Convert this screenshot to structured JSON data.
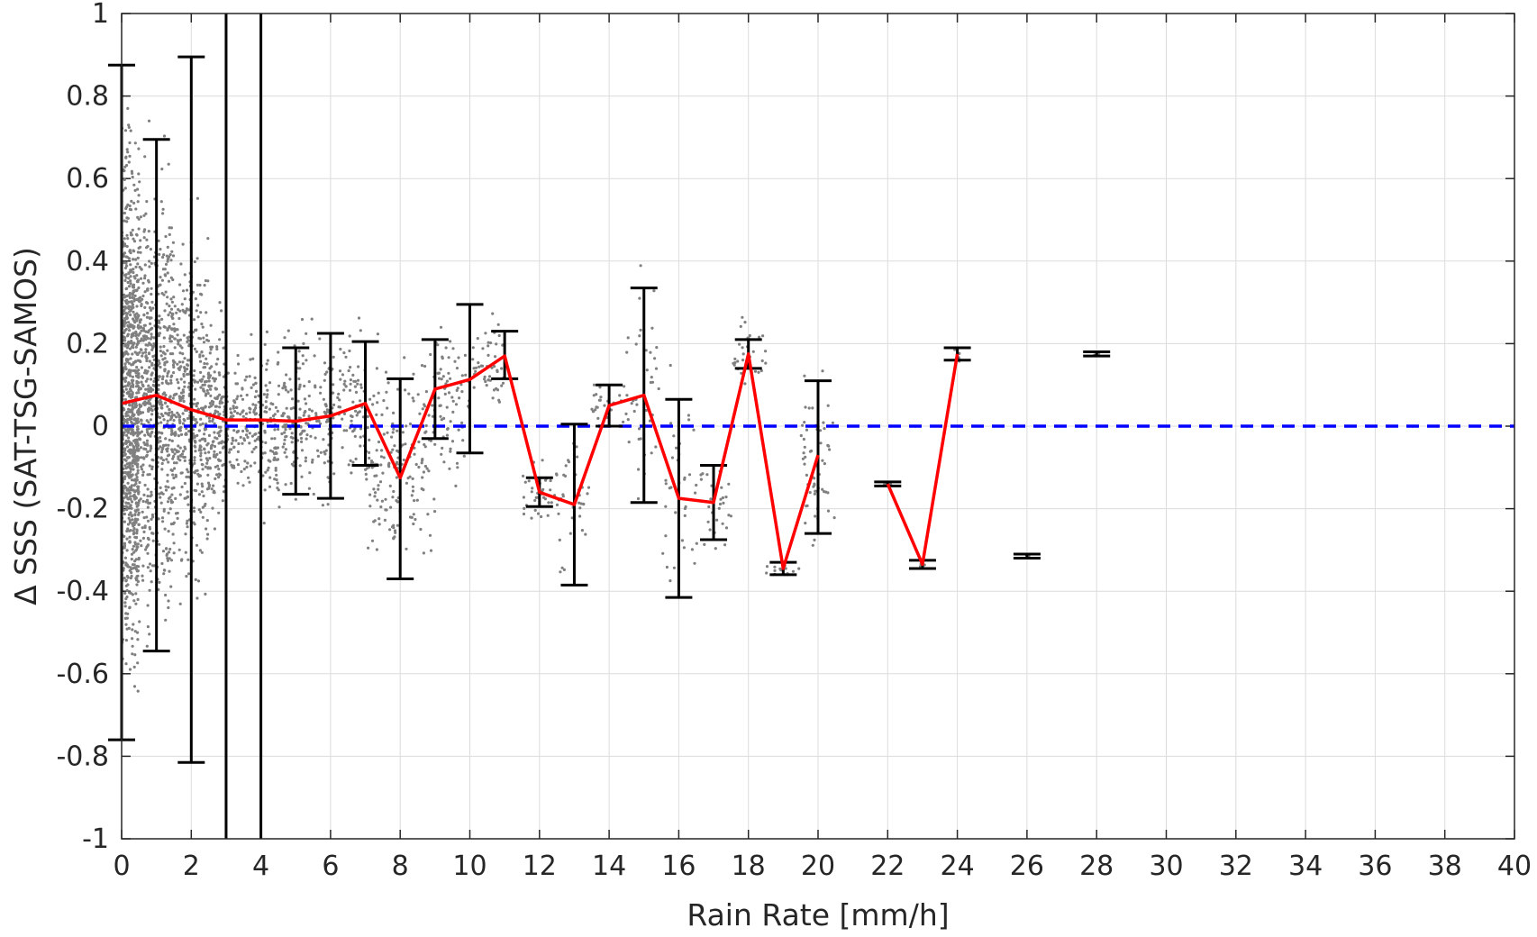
{
  "chart_data": {
    "type": "scatter",
    "xlabel": "Rain Rate [mm/h]",
    "ylabel": "Δ SSS (SAT-TSG-SAMOS)",
    "xlim": [
      0,
      40
    ],
    "ylim": [
      -1,
      1
    ],
    "grid": true,
    "x_ticks": [
      "0",
      "2",
      "4",
      "6",
      "8",
      "10",
      "12",
      "14",
      "16",
      "18",
      "20",
      "22",
      "24",
      "26",
      "28",
      "30",
      "32",
      "34",
      "36",
      "38",
      "40"
    ],
    "y_ticks": [
      "-1",
      "-0.8",
      "-0.6",
      "-0.4",
      "-0.2",
      "0",
      "0.2",
      "0.4",
      "0.6",
      "0.8",
      "1"
    ],
    "vertical_lines_x": [
      3,
      4
    ],
    "zero_line": {
      "y": 0,
      "style": "dashed",
      "color": "#0000ff"
    },
    "mean_line": {
      "color": "#ff0000",
      "x": [
        0,
        1,
        2,
        3,
        4,
        5,
        6,
        7,
        8,
        9,
        10,
        11,
        12,
        13,
        14,
        15,
        16,
        17,
        18,
        19,
        20
      ],
      "y": [
        0.055,
        0.075,
        0.04,
        0.015,
        0.015,
        0.012,
        0.025,
        0.055,
        -0.125,
        0.09,
        0.113,
        0.17,
        -0.16,
        -0.19,
        0.05,
        0.075,
        -0.175,
        -0.185,
        0.175,
        -0.345,
        -0.07
      ]
    },
    "mean_line_2": {
      "color": "#ff0000",
      "x": [
        22,
        23,
        24
      ],
      "y": [
        -0.14,
        -0.335,
        0.175
      ]
    },
    "error_bars": [
      {
        "x": 0,
        "low": -0.76,
        "high": 0.875
      },
      {
        "x": 1,
        "low": -0.545,
        "high": 0.695
      },
      {
        "x": 2,
        "low": -0.815,
        "high": 0.895
      },
      {
        "x": 5,
        "low": -0.165,
        "high": 0.19
      },
      {
        "x": 6,
        "low": -0.175,
        "high": 0.225
      },
      {
        "x": 7,
        "low": -0.095,
        "high": 0.205
      },
      {
        "x": 8,
        "low": -0.37,
        "high": 0.115
      },
      {
        "x": 9,
        "low": -0.03,
        "high": 0.21
      },
      {
        "x": 10,
        "low": -0.065,
        "high": 0.295
      },
      {
        "x": 11,
        "low": 0.115,
        "high": 0.23
      },
      {
        "x": 12,
        "low": -0.195,
        "high": -0.125
      },
      {
        "x": 13,
        "low": -0.385,
        "high": 0.005
      },
      {
        "x": 14,
        "low": 0.0,
        "high": 0.1
      },
      {
        "x": 15,
        "low": -0.185,
        "high": 0.335
      },
      {
        "x": 16,
        "low": -0.415,
        "high": 0.065
      },
      {
        "x": 17,
        "low": -0.275,
        "high": -0.095
      },
      {
        "x": 18,
        "low": 0.14,
        "high": 0.21
      },
      {
        "x": 19,
        "low": -0.36,
        "high": -0.33
      },
      {
        "x": 20,
        "low": -0.26,
        "high": 0.11
      },
      {
        "x": 22,
        "low": -0.145,
        "high": -0.135
      },
      {
        "x": 23,
        "low": -0.345,
        "high": -0.325
      },
      {
        "x": 24,
        "low": 0.16,
        "high": 0.19
      },
      {
        "x": 26,
        "low": -0.32,
        "high": -0.31
      },
      {
        "x": 28,
        "low": 0.17,
        "high": 0.18
      }
    ],
    "scatter_color": "#808080",
    "scatter_clusters": [
      {
        "x0": 0.0,
        "x1": 0.5,
        "y_center": 0.05,
        "spread": 0.45,
        "count": 900
      },
      {
        "x0": 0.5,
        "x1": 1.5,
        "y_center": 0.07,
        "spread": 0.38,
        "count": 650
      },
      {
        "x0": 1.5,
        "x1": 2.5,
        "y_center": 0.04,
        "spread": 0.3,
        "count": 420
      },
      {
        "x0": 2.5,
        "x1": 3.0,
        "y_center": 0.02,
        "spread": 0.17,
        "count": 150
      },
      {
        "x0": 3.0,
        "x1": 4.0,
        "y_center": 0.015,
        "spread": 0.12,
        "count": 140
      },
      {
        "x0": 4.0,
        "x1": 5.0,
        "y_center": 0.0,
        "spread": 0.17,
        "count": 140
      },
      {
        "x0": 5.0,
        "x1": 6.0,
        "y_center": 0.02,
        "spread": 0.16,
        "count": 120
      },
      {
        "x0": 6.0,
        "x1": 7.0,
        "y_center": 0.05,
        "spread": 0.13,
        "count": 90
      },
      {
        "x0": 7.0,
        "x1": 8.0,
        "y_center": -0.1,
        "spread": 0.18,
        "count": 110
      },
      {
        "x0": 8.0,
        "x1": 9.0,
        "y_center": -0.05,
        "spread": 0.18,
        "count": 80
      },
      {
        "x0": 9.0,
        "x1": 10.0,
        "y_center": 0.08,
        "spread": 0.14,
        "count": 70
      },
      {
        "x0": 10.0,
        "x1": 11.0,
        "y_center": 0.15,
        "spread": 0.09,
        "count": 50
      },
      {
        "x0": 11.5,
        "x1": 12.5,
        "y_center": -0.16,
        "spread": 0.06,
        "count": 35
      },
      {
        "x0": 12.5,
        "x1": 13.5,
        "y_center": -0.2,
        "spread": 0.15,
        "count": 35
      },
      {
        "x0": 13.5,
        "x1": 14.5,
        "y_center": 0.05,
        "spread": 0.05,
        "count": 25
      },
      {
        "x0": 14.5,
        "x1": 15.5,
        "y_center": 0.1,
        "spread": 0.2,
        "count": 40
      },
      {
        "x0": 15.5,
        "x1": 16.5,
        "y_center": -0.15,
        "spread": 0.2,
        "count": 35
      },
      {
        "x0": 16.5,
        "x1": 17.5,
        "y_center": -0.2,
        "spread": 0.08,
        "count": 30
      },
      {
        "x0": 17.5,
        "x1": 18.5,
        "y_center": 0.18,
        "spread": 0.06,
        "count": 30
      },
      {
        "x0": 18.5,
        "x1": 19.5,
        "y_center": -0.35,
        "spread": 0.02,
        "count": 15
      },
      {
        "x0": 19.5,
        "x1": 20.5,
        "y_center": -0.08,
        "spread": 0.17,
        "count": 60
      },
      {
        "x0": 21.9,
        "x1": 22.1,
        "y_center": -0.14,
        "spread": 0.005,
        "count": 5
      },
      {
        "x0": 22.9,
        "x1": 23.1,
        "y_center": -0.335,
        "spread": 0.01,
        "count": 5
      },
      {
        "x0": 23.9,
        "x1": 24.1,
        "y_center": 0.175,
        "spread": 0.015,
        "count": 6
      },
      {
        "x0": 25.9,
        "x1": 26.1,
        "y_center": -0.315,
        "spread": 0.005,
        "count": 4
      },
      {
        "x0": 27.9,
        "x1": 28.1,
        "y_center": 0.175,
        "spread": 0.005,
        "count": 4
      }
    ]
  }
}
